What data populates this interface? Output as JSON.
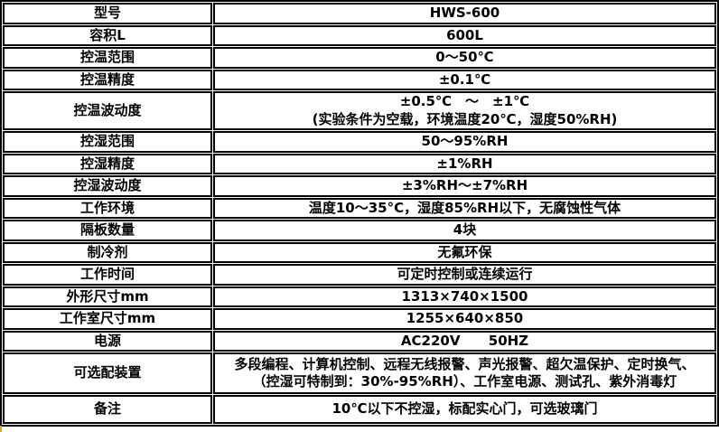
{
  "table": {
    "rows": [
      {
        "label": "型号",
        "value": "HWS-600"
      },
      {
        "label": "容积L",
        "value": "600L"
      },
      {
        "label": "控温范围",
        "value": "0～50℃"
      },
      {
        "label": "控温精度",
        "value": "±0.1℃"
      },
      {
        "label": "控温波动度",
        "value": "±0.5℃　～　±1℃\n(实验条件为空载，环境温度20℃，湿度50%RH)"
      },
      {
        "label": "控湿范围",
        "value": "50～95%RH"
      },
      {
        "label": "控湿精度",
        "value": "±1%RH"
      },
      {
        "label": "控湿波动度",
        "value": "±3%RH～±7%RH"
      },
      {
        "label": "工作环境",
        "value": "温度10～35°C，湿度85%RH以下，无腐蚀性气体"
      },
      {
        "label": "隔板数量",
        "value": "4块"
      },
      {
        "label": "制冷剂",
        "value": "无氟环保"
      },
      {
        "label": "工作时间",
        "value": "可定时控制或连续运行"
      },
      {
        "label": "外形尺寸mm",
        "value": "1313×740×1500"
      },
      {
        "label": "工作室尺寸mm",
        "value": "1255×640×850"
      },
      {
        "label": "电源",
        "value": "AC220V      50HZ"
      },
      {
        "label": "可选配装置",
        "value": "多段编程、计算机控制、远程无线报警、声光报警、超欠温保护、定时换气、\n（控湿可特制到：30%-95%RH）、工作室电源、测试孔、紫外消毒灯"
      },
      {
        "label": "备注",
        "value": "10℃以下不控湿，标配实心门，可选玻璃门"
      }
    ]
  },
  "colors": {
    "border": "#000000",
    "text": "#000000",
    "background": "#ffffff",
    "corner_mark": "#dda43a"
  }
}
